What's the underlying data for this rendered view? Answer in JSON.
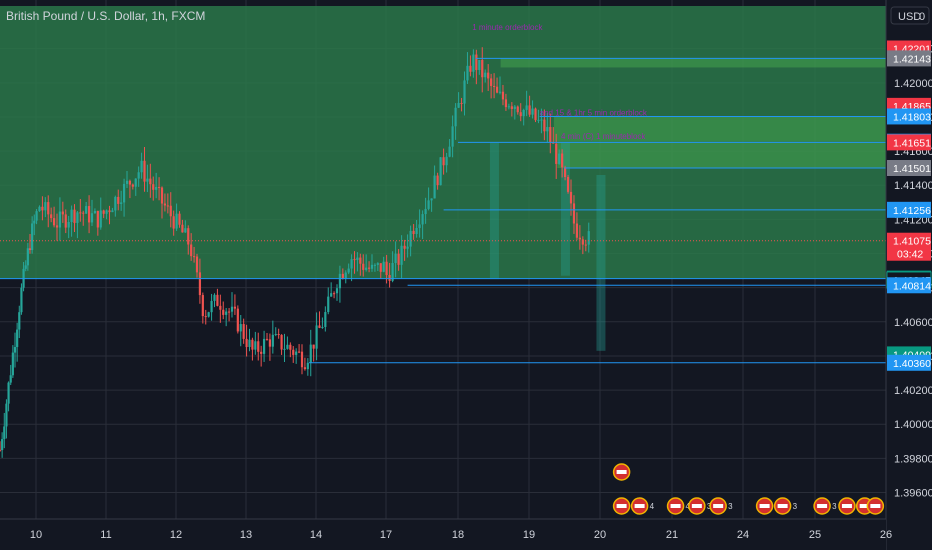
{
  "header": {
    "title": "British Pound / U.S. Dollar, 1h, FXCM",
    "currency_label": "USD",
    "currency_mode": "0"
  },
  "colors": {
    "background": "#131722",
    "up": "#26a69a",
    "down": "#ef5350",
    "zone": "#2b7a4b",
    "level_line": "#2196f3",
    "annotation": "#9c27b0"
  },
  "chart_data": {
    "type": "candlestick",
    "symbol": "British Pound / U.S. Dollar",
    "interval": "1h",
    "source": "FXCM",
    "x_ticks": [
      "10",
      "11",
      "12",
      "13",
      "14",
      "17",
      "18",
      "19",
      "20",
      "21",
      "24",
      "25",
      "26"
    ],
    "y_ticks": [
      "1.42200",
      "1.42000",
      "1.41800",
      "1.41600",
      "1.41400",
      "1.41200",
      "1.41000",
      "1.40800",
      "1.40600",
      "1.40400",
      "1.40200",
      "1.40000",
      "1.39800",
      "1.39600"
    ],
    "ylim": [
      1.3948,
      1.4245
    ],
    "grid": true,
    "current_price": "1.41075",
    "countdown": "03:42",
    "price_tags": [
      {
        "label": "1.42201",
        "value": 1.42201,
        "style": "red"
      },
      {
        "label": "1.42143",
        "value": 1.42143,
        "style": "gray"
      },
      {
        "label": "1.41865",
        "value": 1.41865,
        "style": "red"
      },
      {
        "label": "1.41803",
        "value": 1.41803,
        "style": "blue"
      },
      {
        "label": "1.41655",
        "value": 1.41655,
        "style": "blue"
      },
      {
        "label": "1.41651",
        "value": 1.41651,
        "style": "red"
      },
      {
        "label": "1.41501",
        "value": 1.41501,
        "style": "gray"
      },
      {
        "label": "1.41256",
        "value": 1.41256,
        "style": "blue"
      },
      {
        "label": "1.40853",
        "value": 1.40853,
        "style": "green"
      },
      {
        "label": "1.40845",
        "value": 1.40845,
        "style": "dark"
      },
      {
        "label": "1.40814",
        "value": 1.40814,
        "style": "blue"
      },
      {
        "label": "1.40409",
        "value": 1.40409,
        "style": "green"
      },
      {
        "label": "1.40360",
        "value": 1.4036,
        "style": "blue"
      }
    ],
    "zones": [
      {
        "from": 1.40853,
        "to": 1.4245,
        "x_start_day": 9.3
      }
    ],
    "levels": [
      {
        "value": 1.42143,
        "x_start_day": 18.25
      },
      {
        "value": 1.41803,
        "x_start_day": 19.15
      },
      {
        "value": 1.41651,
        "x_start_day": 18.0
      },
      {
        "value": 1.41501,
        "x_start_day": 19.5
      },
      {
        "value": 1.41256,
        "x_start_day": 17.8
      },
      {
        "value": 1.40814,
        "x_start_day": 17.3
      },
      {
        "value": 1.4036,
        "x_start_day": 13.9
      }
    ],
    "annotations": [
      {
        "text": "1 minute orderblock",
        "day": 18.2,
        "value": 1.4231
      },
      {
        "text": "and 15 & 1hr 5 min orderblock",
        "day": 19.15,
        "value": 1.4181
      },
      {
        "text": "4 min (C) 1 minuteblock",
        "day": 19.45,
        "value": 1.4167
      }
    ],
    "events": [
      {
        "day": 20.3,
        "row": 2,
        "label": ""
      },
      {
        "day": 20.3,
        "row": 1,
        "label": "333"
      },
      {
        "day": 20.55,
        "row": 1,
        "label": "4"
      },
      {
        "day": 21.05,
        "row": 1,
        "label": "4"
      },
      {
        "day": 21.35,
        "row": 1,
        "label": "3"
      },
      {
        "day": 21.65,
        "row": 1,
        "label": "3"
      },
      {
        "day": 24.3,
        "row": 1,
        "label": "11"
      },
      {
        "day": 24.55,
        "row": 1,
        "label": "3"
      },
      {
        "day": 25.1,
        "row": 1,
        "label": "3"
      },
      {
        "day": 25.45,
        "row": 1,
        "label": "3"
      },
      {
        "day": 25.7,
        "row": 1,
        "label": "4"
      },
      {
        "day": 25.85,
        "row": 1,
        "label": "8"
      }
    ],
    "ohlc_path": [
      [
        9.3,
        1.3985
      ],
      [
        9.5,
        1.403
      ],
      [
        9.7,
        1.4075
      ],
      [
        9.9,
        1.411
      ],
      [
        10.05,
        1.4128
      ],
      [
        10.3,
        1.4118
      ],
      [
        10.6,
        1.4125
      ],
      [
        10.9,
        1.412
      ],
      [
        11.2,
        1.4135
      ],
      [
        11.5,
        1.415
      ],
      [
        11.8,
        1.413
      ],
      [
        12.0,
        1.4118
      ],
      [
        12.2,
        1.4105
      ],
      [
        12.4,
        1.4065
      ],
      [
        12.6,
        1.4073
      ],
      [
        12.85,
        1.4062
      ],
      [
        13.1,
        1.4042
      ],
      [
        13.35,
        1.405
      ],
      [
        13.6,
        1.4045
      ],
      [
        13.85,
        1.4038
      ],
      [
        14.1,
        1.406
      ],
      [
        14.3,
        1.4085
      ],
      [
        14.5,
        1.4098
      ],
      [
        14.8,
        1.409
      ],
      [
        15.0,
        1.4093
      ],
      [
        17.0,
        1.4087
      ],
      [
        17.2,
        1.4098
      ],
      [
        17.4,
        1.4118
      ],
      [
        17.6,
        1.4133
      ],
      [
        17.8,
        1.4155
      ],
      [
        18.0,
        1.4185
      ],
      [
        18.2,
        1.4214
      ],
      [
        18.35,
        1.4205
      ],
      [
        18.55,
        1.4192
      ],
      [
        18.8,
        1.4188
      ],
      [
        19.05,
        1.418
      ],
      [
        19.25,
        1.4172
      ],
      [
        19.45,
        1.415
      ],
      [
        19.65,
        1.4115
      ],
      [
        19.85,
        1.4108
      ]
    ]
  }
}
